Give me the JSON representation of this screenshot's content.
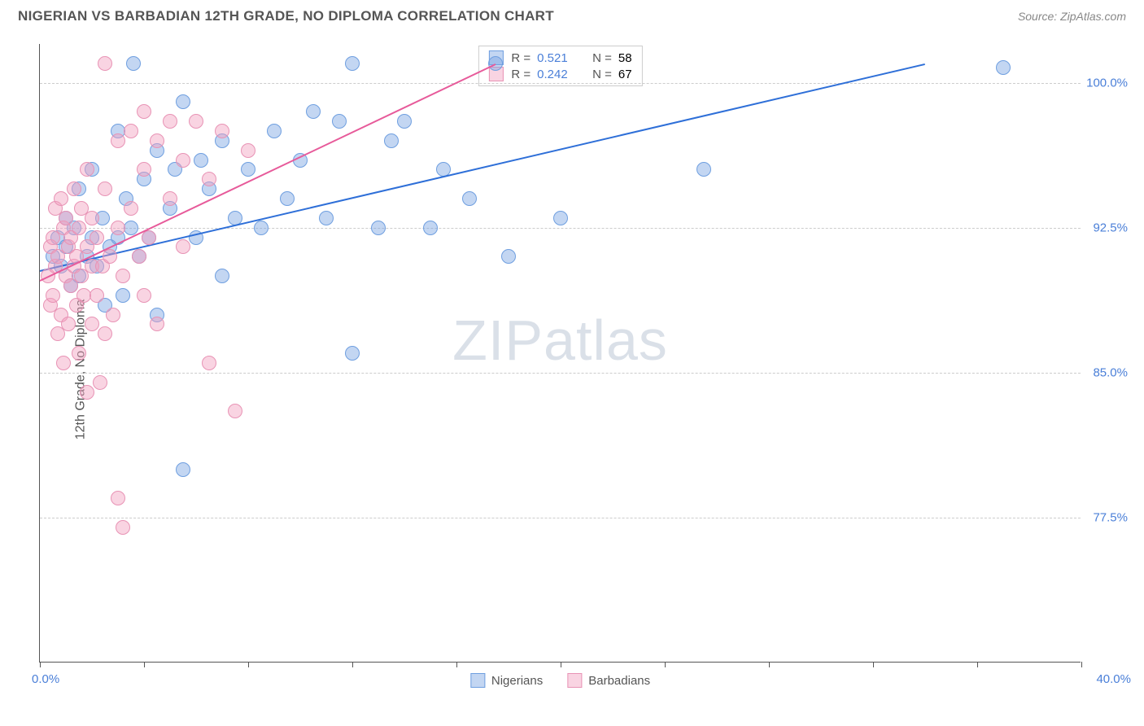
{
  "header": {
    "title": "NIGERIAN VS BARBADIAN 12TH GRADE, NO DIPLOMA CORRELATION CHART",
    "source": "Source: ZipAtlas.com"
  },
  "chart": {
    "type": "scatter",
    "ylabel": "12th Grade, No Diploma",
    "xlim": [
      0,
      40
    ],
    "ylim": [
      70,
      102
    ],
    "x_axis_labels": {
      "min": "0.0%",
      "max": "40.0%"
    },
    "y_gridlines": [
      {
        "value": 100.0,
        "label": "100.0%"
      },
      {
        "value": 92.5,
        "label": "92.5%"
      },
      {
        "value": 85.0,
        "label": "85.0%"
      },
      {
        "value": 77.5,
        "label": "77.5%"
      }
    ],
    "x_ticks": [
      0,
      4,
      8,
      12,
      16,
      20,
      24,
      28,
      32,
      36,
      40
    ],
    "background_color": "#ffffff",
    "grid_color": "#cccccc",
    "axis_color": "#555555",
    "watermark": {
      "text_a": "ZIP",
      "text_b": "atlas"
    },
    "series": [
      {
        "name": "Nigerians",
        "color_fill": "rgba(122,164,226,0.45)",
        "color_stroke": "#6f9fe0",
        "trend_color": "#2e6fd8",
        "marker_radius": 9,
        "r_value": "0.521",
        "n_value": "58",
        "trend": {
          "x1": 0,
          "y1": 90.3,
          "x2": 34,
          "y2": 101.0
        },
        "points": [
          [
            0.5,
            91.0
          ],
          [
            0.7,
            92.0
          ],
          [
            0.8,
            90.5
          ],
          [
            1.0,
            91.5
          ],
          [
            1.2,
            89.5
          ],
          [
            1.0,
            93.0
          ],
          [
            1.3,
            92.5
          ],
          [
            1.5,
            90.0
          ],
          [
            1.5,
            94.5
          ],
          [
            1.8,
            91.0
          ],
          [
            2.0,
            92.0
          ],
          [
            2.0,
            95.5
          ],
          [
            2.2,
            90.5
          ],
          [
            2.4,
            93.0
          ],
          [
            2.5,
            88.5
          ],
          [
            2.7,
            91.5
          ],
          [
            3.0,
            92.0
          ],
          [
            3.0,
            97.5
          ],
          [
            3.2,
            89.0
          ],
          [
            3.3,
            94.0
          ],
          [
            3.5,
            92.5
          ],
          [
            3.6,
            101.0
          ],
          [
            3.8,
            91.0
          ],
          [
            4.0,
            95.0
          ],
          [
            4.2,
            92.0
          ],
          [
            4.5,
            88.0
          ],
          [
            4.5,
            96.5
          ],
          [
            5.0,
            93.5
          ],
          [
            5.2,
            95.5
          ],
          [
            5.5,
            80.0
          ],
          [
            5.5,
            99.0
          ],
          [
            6.0,
            92.0
          ],
          [
            6.2,
            96.0
          ],
          [
            6.5,
            94.5
          ],
          [
            7.0,
            90.0
          ],
          [
            7.0,
            97.0
          ],
          [
            7.5,
            93.0
          ],
          [
            8.0,
            95.5
          ],
          [
            8.5,
            92.5
          ],
          [
            9.0,
            97.5
          ],
          [
            9.5,
            94.0
          ],
          [
            10.0,
            96.0
          ],
          [
            10.5,
            98.5
          ],
          [
            11.0,
            93.0
          ],
          [
            11.5,
            98.0
          ],
          [
            12.0,
            86.0
          ],
          [
            12.0,
            101.0
          ],
          [
            13.0,
            92.5
          ],
          [
            13.5,
            97.0
          ],
          [
            14.0,
            98.0
          ],
          [
            15.0,
            92.5
          ],
          [
            15.5,
            95.5
          ],
          [
            16.5,
            94.0
          ],
          [
            17.5,
            101.0
          ],
          [
            18.0,
            91.0
          ],
          [
            20.0,
            93.0
          ],
          [
            25.5,
            95.5
          ],
          [
            37.0,
            100.8
          ]
        ]
      },
      {
        "name": "Barbadians",
        "color_fill": "rgba(242,160,190,0.45)",
        "color_stroke": "#e893b5",
        "trend_color": "#e75a9a",
        "marker_radius": 9,
        "r_value": "0.242",
        "n_value": "67",
        "trend": {
          "x1": 0,
          "y1": 89.8,
          "x2": 17.5,
          "y2": 101.0
        },
        "points": [
          [
            0.3,
            90.0
          ],
          [
            0.4,
            91.5
          ],
          [
            0.4,
            88.5
          ],
          [
            0.5,
            92.0
          ],
          [
            0.5,
            89.0
          ],
          [
            0.6,
            93.5
          ],
          [
            0.6,
            90.5
          ],
          [
            0.7,
            87.0
          ],
          [
            0.7,
            91.0
          ],
          [
            0.8,
            94.0
          ],
          [
            0.8,
            88.0
          ],
          [
            0.9,
            92.5
          ],
          [
            0.9,
            85.5
          ],
          [
            1.0,
            90.0
          ],
          [
            1.0,
            93.0
          ],
          [
            1.1,
            91.5
          ],
          [
            1.1,
            87.5
          ],
          [
            1.2,
            89.5
          ],
          [
            1.2,
            92.0
          ],
          [
            1.3,
            90.5
          ],
          [
            1.3,
            94.5
          ],
          [
            1.4,
            88.5
          ],
          [
            1.4,
            91.0
          ],
          [
            1.5,
            86.0
          ],
          [
            1.5,
            92.5
          ],
          [
            1.6,
            90.0
          ],
          [
            1.6,
            93.5
          ],
          [
            1.7,
            89.0
          ],
          [
            1.8,
            91.5
          ],
          [
            1.8,
            84.0
          ],
          [
            1.8,
            95.5
          ],
          [
            2.0,
            90.5
          ],
          [
            2.0,
            87.5
          ],
          [
            2.0,
            93.0
          ],
          [
            2.2,
            89.0
          ],
          [
            2.2,
            92.0
          ],
          [
            2.3,
            84.5
          ],
          [
            2.4,
            90.5
          ],
          [
            2.5,
            87.0
          ],
          [
            2.5,
            94.5
          ],
          [
            2.5,
            101.0
          ],
          [
            2.7,
            91.0
          ],
          [
            2.8,
            88.0
          ],
          [
            3.0,
            92.5
          ],
          [
            3.0,
            78.5
          ],
          [
            3.0,
            97.0
          ],
          [
            3.2,
            90.0
          ],
          [
            3.2,
            77.0
          ],
          [
            3.5,
            93.5
          ],
          [
            3.5,
            97.5
          ],
          [
            3.8,
            91.0
          ],
          [
            4.0,
            89.0
          ],
          [
            4.0,
            95.5
          ],
          [
            4.0,
            98.5
          ],
          [
            4.2,
            92.0
          ],
          [
            4.5,
            87.5
          ],
          [
            4.5,
            97.0
          ],
          [
            5.0,
            94.0
          ],
          [
            5.0,
            98.0
          ],
          [
            5.5,
            91.5
          ],
          [
            5.5,
            96.0
          ],
          [
            6.0,
            98.0
          ],
          [
            6.5,
            95.0
          ],
          [
            6.5,
            85.5
          ],
          [
            7.0,
            97.5
          ],
          [
            7.5,
            83.0
          ],
          [
            8.0,
            96.5
          ]
        ]
      }
    ],
    "legend_bottom": [
      {
        "label": "Nigerians",
        "fill": "rgba(122,164,226,0.45)",
        "stroke": "#6f9fe0"
      },
      {
        "label": "Barbadians",
        "fill": "rgba(242,160,190,0.45)",
        "stroke": "#e893b5"
      }
    ]
  }
}
